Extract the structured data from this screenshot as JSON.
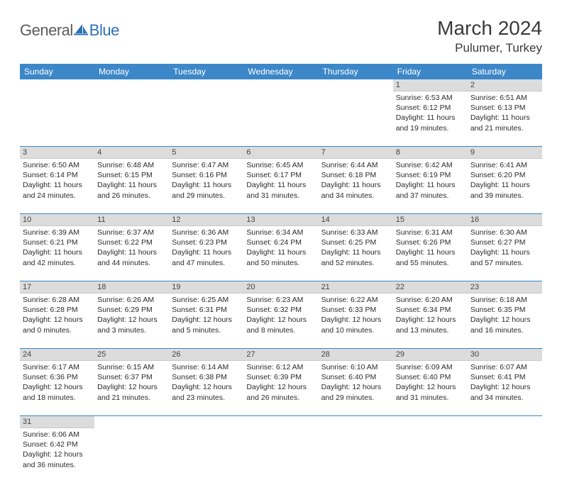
{
  "brand": {
    "part1": "General",
    "part2": "Blue"
  },
  "title": "March 2024",
  "location": "Pulumer, Turkey",
  "colors": {
    "header_bg": "#3c87c7",
    "header_fg": "#ffffff",
    "daynum_bg": "#dcdcdc",
    "row_border": "#3c87c7",
    "text": "#2b2b2b",
    "brand_gray": "#5b5b5b",
    "brand_blue": "#2e72b8"
  },
  "weekdays": [
    "Sunday",
    "Monday",
    "Tuesday",
    "Wednesday",
    "Thursday",
    "Friday",
    "Saturday"
  ],
  "weeks": [
    [
      null,
      null,
      null,
      null,
      null,
      {
        "n": "1",
        "sr": "Sunrise: 6:53 AM",
        "ss": "Sunset: 6:12 PM",
        "dl": "Daylight: 11 hours and 19 minutes."
      },
      {
        "n": "2",
        "sr": "Sunrise: 6:51 AM",
        "ss": "Sunset: 6:13 PM",
        "dl": "Daylight: 11 hours and 21 minutes."
      }
    ],
    [
      {
        "n": "3",
        "sr": "Sunrise: 6:50 AM",
        "ss": "Sunset: 6:14 PM",
        "dl": "Daylight: 11 hours and 24 minutes."
      },
      {
        "n": "4",
        "sr": "Sunrise: 6:48 AM",
        "ss": "Sunset: 6:15 PM",
        "dl": "Daylight: 11 hours and 26 minutes."
      },
      {
        "n": "5",
        "sr": "Sunrise: 6:47 AM",
        "ss": "Sunset: 6:16 PM",
        "dl": "Daylight: 11 hours and 29 minutes."
      },
      {
        "n": "6",
        "sr": "Sunrise: 6:45 AM",
        "ss": "Sunset: 6:17 PM",
        "dl": "Daylight: 11 hours and 31 minutes."
      },
      {
        "n": "7",
        "sr": "Sunrise: 6:44 AM",
        "ss": "Sunset: 6:18 PM",
        "dl": "Daylight: 11 hours and 34 minutes."
      },
      {
        "n": "8",
        "sr": "Sunrise: 6:42 AM",
        "ss": "Sunset: 6:19 PM",
        "dl": "Daylight: 11 hours and 37 minutes."
      },
      {
        "n": "9",
        "sr": "Sunrise: 6:41 AM",
        "ss": "Sunset: 6:20 PM",
        "dl": "Daylight: 11 hours and 39 minutes."
      }
    ],
    [
      {
        "n": "10",
        "sr": "Sunrise: 6:39 AM",
        "ss": "Sunset: 6:21 PM",
        "dl": "Daylight: 11 hours and 42 minutes."
      },
      {
        "n": "11",
        "sr": "Sunrise: 6:37 AM",
        "ss": "Sunset: 6:22 PM",
        "dl": "Daylight: 11 hours and 44 minutes."
      },
      {
        "n": "12",
        "sr": "Sunrise: 6:36 AM",
        "ss": "Sunset: 6:23 PM",
        "dl": "Daylight: 11 hours and 47 minutes."
      },
      {
        "n": "13",
        "sr": "Sunrise: 6:34 AM",
        "ss": "Sunset: 6:24 PM",
        "dl": "Daylight: 11 hours and 50 minutes."
      },
      {
        "n": "14",
        "sr": "Sunrise: 6:33 AM",
        "ss": "Sunset: 6:25 PM",
        "dl": "Daylight: 11 hours and 52 minutes."
      },
      {
        "n": "15",
        "sr": "Sunrise: 6:31 AM",
        "ss": "Sunset: 6:26 PM",
        "dl": "Daylight: 11 hours and 55 minutes."
      },
      {
        "n": "16",
        "sr": "Sunrise: 6:30 AM",
        "ss": "Sunset: 6:27 PM",
        "dl": "Daylight: 11 hours and 57 minutes."
      }
    ],
    [
      {
        "n": "17",
        "sr": "Sunrise: 6:28 AM",
        "ss": "Sunset: 6:28 PM",
        "dl": "Daylight: 12 hours and 0 minutes."
      },
      {
        "n": "18",
        "sr": "Sunrise: 6:26 AM",
        "ss": "Sunset: 6:29 PM",
        "dl": "Daylight: 12 hours and 3 minutes."
      },
      {
        "n": "19",
        "sr": "Sunrise: 6:25 AM",
        "ss": "Sunset: 6:31 PM",
        "dl": "Daylight: 12 hours and 5 minutes."
      },
      {
        "n": "20",
        "sr": "Sunrise: 6:23 AM",
        "ss": "Sunset: 6:32 PM",
        "dl": "Daylight: 12 hours and 8 minutes."
      },
      {
        "n": "21",
        "sr": "Sunrise: 6:22 AM",
        "ss": "Sunset: 6:33 PM",
        "dl": "Daylight: 12 hours and 10 minutes."
      },
      {
        "n": "22",
        "sr": "Sunrise: 6:20 AM",
        "ss": "Sunset: 6:34 PM",
        "dl": "Daylight: 12 hours and 13 minutes."
      },
      {
        "n": "23",
        "sr": "Sunrise: 6:18 AM",
        "ss": "Sunset: 6:35 PM",
        "dl": "Daylight: 12 hours and 16 minutes."
      }
    ],
    [
      {
        "n": "24",
        "sr": "Sunrise: 6:17 AM",
        "ss": "Sunset: 6:36 PM",
        "dl": "Daylight: 12 hours and 18 minutes."
      },
      {
        "n": "25",
        "sr": "Sunrise: 6:15 AM",
        "ss": "Sunset: 6:37 PM",
        "dl": "Daylight: 12 hours and 21 minutes."
      },
      {
        "n": "26",
        "sr": "Sunrise: 6:14 AM",
        "ss": "Sunset: 6:38 PM",
        "dl": "Daylight: 12 hours and 23 minutes."
      },
      {
        "n": "27",
        "sr": "Sunrise: 6:12 AM",
        "ss": "Sunset: 6:39 PM",
        "dl": "Daylight: 12 hours and 26 minutes."
      },
      {
        "n": "28",
        "sr": "Sunrise: 6:10 AM",
        "ss": "Sunset: 6:40 PM",
        "dl": "Daylight: 12 hours and 29 minutes."
      },
      {
        "n": "29",
        "sr": "Sunrise: 6:09 AM",
        "ss": "Sunset: 6:40 PM",
        "dl": "Daylight: 12 hours and 31 minutes."
      },
      {
        "n": "30",
        "sr": "Sunrise: 6:07 AM",
        "ss": "Sunset: 6:41 PM",
        "dl": "Daylight: 12 hours and 34 minutes."
      }
    ],
    [
      {
        "n": "31",
        "sr": "Sunrise: 6:06 AM",
        "ss": "Sunset: 6:42 PM",
        "dl": "Daylight: 12 hours and 36 minutes."
      },
      null,
      null,
      null,
      null,
      null,
      null
    ]
  ]
}
